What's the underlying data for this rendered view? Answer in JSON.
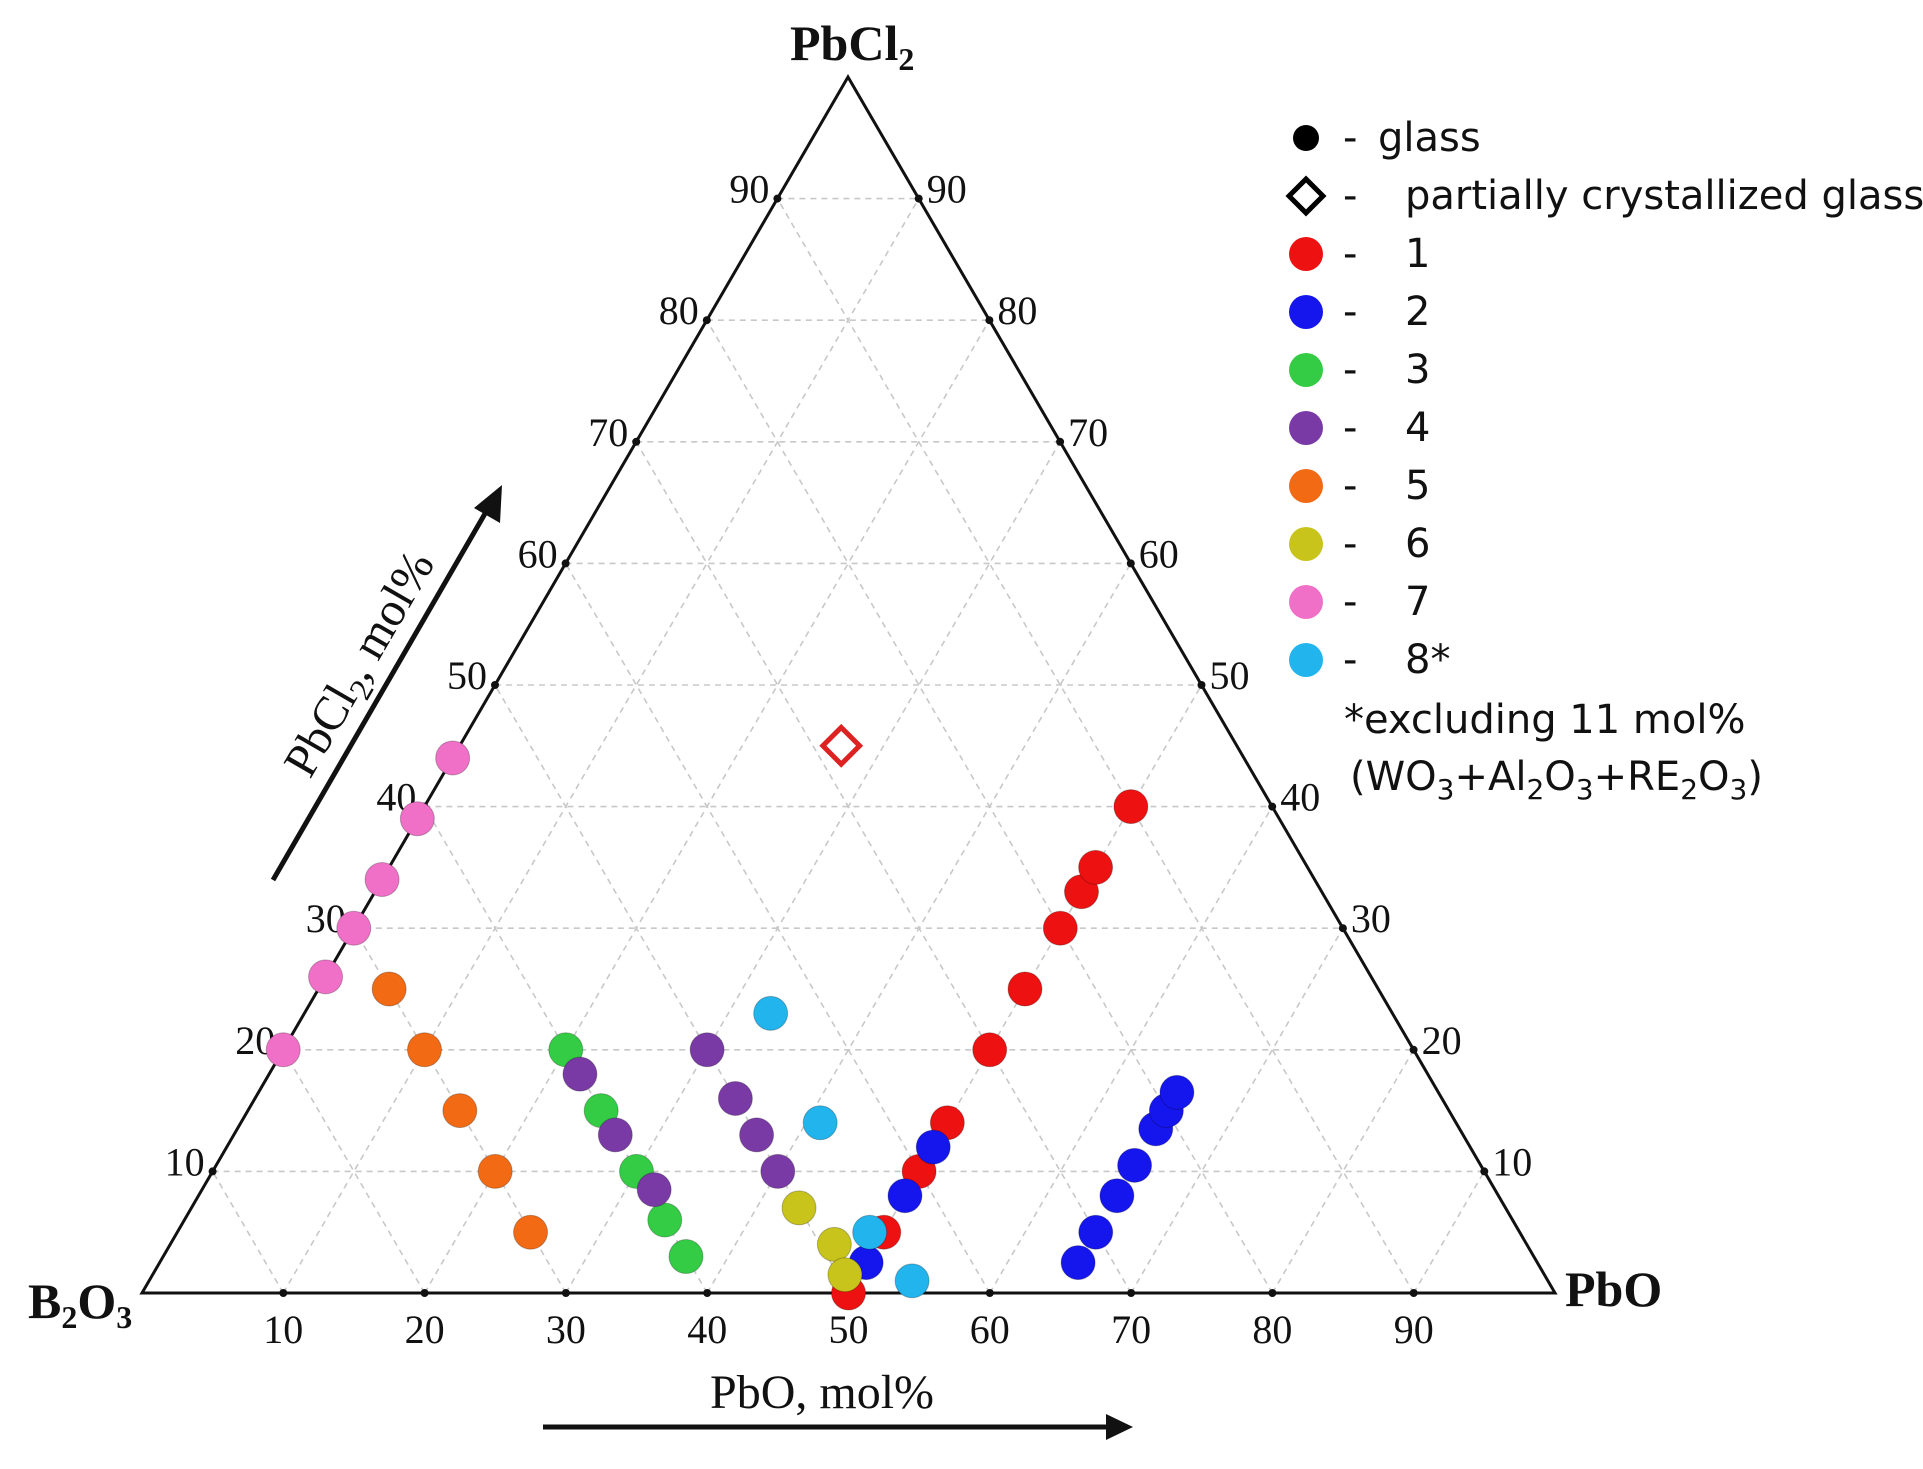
{
  "chart_data": {
    "type": "scatter",
    "plot_kind": "ternary",
    "vertices": {
      "top": {
        "main": "PbCl",
        "sub": "2",
        "tail": ""
      },
      "left": {
        "main": "B",
        "sub": "2",
        "mid": "O",
        "sub2": "3"
      },
      "right": {
        "main": "PbO"
      }
    },
    "axis_titles": {
      "left": {
        "main": "PbCl",
        "sub": "2",
        "tail": ", mol%"
      },
      "bottom": {
        "main": "PbO, mol%"
      }
    },
    "ticks": [
      "10",
      "20",
      "30",
      "40",
      "50",
      "60",
      "70",
      "80",
      "90"
    ],
    "tick_values": [
      10,
      20,
      30,
      40,
      50,
      60,
      70,
      80,
      90
    ],
    "grid": true,
    "legend": {
      "placement": "top-right",
      "items": [
        {
          "key": "glass",
          "dash": "-",
          "label": "glass",
          "marker": "dot",
          "color": "#000000"
        },
        {
          "key": "partial",
          "dash": "-",
          "label": "partially crystallized glass",
          "marker": "diamond",
          "color": "#000000"
        },
        {
          "key": "s1",
          "dash": "-",
          "label": "1",
          "marker": "dot",
          "color": "#ee1111"
        },
        {
          "key": "s2",
          "dash": "-",
          "label": "2",
          "marker": "dot",
          "color": "#1515ee"
        },
        {
          "key": "s3",
          "dash": "-",
          "label": "3",
          "marker": "dot",
          "color": "#33cc44"
        },
        {
          "key": "s4",
          "dash": "-",
          "label": "4",
          "marker": "dot",
          "color": "#7a3aa6"
        },
        {
          "key": "s5",
          "dash": "-",
          "label": "5",
          "marker": "dot",
          "color": "#f26a14"
        },
        {
          "key": "s6",
          "dash": "-",
          "label": "6",
          "marker": "dot",
          "color": "#c8c41c"
        },
        {
          "key": "s7",
          "dash": "-",
          "label": "7",
          "marker": "dot",
          "color": "#f070c8"
        },
        {
          "key": "s8",
          "dash": "-",
          "label": "8*",
          "marker": "dot",
          "color": "#22b4ec"
        }
      ],
      "footnote_line1": "*excluding 11 mol%",
      "footnote_line2": {
        "p1": "(WO",
        "s1": "3",
        "p2": "+Al",
        "s2": "2",
        "p3": "O",
        "s3": "3",
        "p4": "+RE",
        "s4": "2",
        "p5": "O",
        "s5": "3",
        "p6": ")"
      }
    },
    "series": [
      {
        "name": "1",
        "color": "#ee1111",
        "points": [
          {
            "PbO": 50,
            "PbCl2": 0
          },
          {
            "PbO": 50,
            "PbCl2": 5
          },
          {
            "PbO": 50,
            "PbCl2": 10
          },
          {
            "PbO": 50,
            "PbCl2": 14
          },
          {
            "PbO": 50,
            "PbCl2": 20
          },
          {
            "PbO": 50,
            "PbCl2": 25
          },
          {
            "PbO": 50,
            "PbCl2": 30
          },
          {
            "PbO": 50,
            "PbCl2": 33
          },
          {
            "PbO": 50,
            "PbCl2": 35
          },
          {
            "PbO": 50,
            "PbCl2": 40
          }
        ]
      },
      {
        "name": "2",
        "color": "#1515ee",
        "points": [
          {
            "PbO": 50,
            "PbCl2": 2.5
          },
          {
            "PbO": 50,
            "PbCl2": 8
          },
          {
            "PbO": 50,
            "PbCl2": 12
          },
          {
            "PbO": 65,
            "PbCl2": 2.5
          },
          {
            "PbO": 65,
            "PbCl2": 5
          },
          {
            "PbO": 65,
            "PbCl2": 8
          },
          {
            "PbO": 65,
            "PbCl2": 10.5
          },
          {
            "PbO": 65,
            "PbCl2": 13.5
          },
          {
            "PbO": 65,
            "PbCl2": 15
          },
          {
            "PbO": 65,
            "PbCl2": 16.5
          }
        ]
      },
      {
        "name": "3",
        "color": "#33cc44",
        "points": [
          {
            "PbO": 20,
            "PbCl2": 20
          },
          {
            "PbO": 25,
            "PbCl2": 15
          },
          {
            "PbO": 30,
            "PbCl2": 10
          },
          {
            "PbO": 34,
            "PbCl2": 6
          },
          {
            "PbO": 37,
            "PbCl2": 3
          }
        ]
      },
      {
        "name": "4",
        "color": "#7a3aa6",
        "points": [
          {
            "PbO": 22,
            "PbCl2": 18
          },
          {
            "PbO": 27,
            "PbCl2": 13
          },
          {
            "PbO": 32,
            "PbCl2": 8.5
          },
          {
            "PbO": 30,
            "PbCl2": 20
          },
          {
            "PbO": 34,
            "PbCl2": 16
          },
          {
            "PbO": 37,
            "PbCl2": 13
          },
          {
            "PbO": 40,
            "PbCl2": 10
          }
        ]
      },
      {
        "name": "5",
        "color": "#f26a14",
        "points": [
          {
            "PbO": 25,
            "PbCl2": 5
          },
          {
            "PbO": 20,
            "PbCl2": 10
          },
          {
            "PbO": 15,
            "PbCl2": 15
          },
          {
            "PbO": 10,
            "PbCl2": 20
          },
          {
            "PbO": 5,
            "PbCl2": 25
          }
        ]
      },
      {
        "name": "6",
        "color": "#c8c41c",
        "points": [
          {
            "PbO": 43,
            "PbCl2": 7
          },
          {
            "PbO": 47,
            "PbCl2": 4
          },
          {
            "PbO": 49,
            "PbCl2": 1.5
          }
        ]
      },
      {
        "name": "7",
        "color": "#f070c8",
        "points": [
          {
            "PbO": 0,
            "PbCl2": 20
          },
          {
            "PbO": 0,
            "PbCl2": 26
          },
          {
            "PbO": 0,
            "PbCl2": 30
          },
          {
            "PbO": 0,
            "PbCl2": 34
          },
          {
            "PbO": 0,
            "PbCl2": 39
          },
          {
            "PbO": 0,
            "PbCl2": 44
          }
        ]
      },
      {
        "name": "8*",
        "color": "#22b4ec",
        "points": [
          {
            "PbO": 33,
            "PbCl2": 23
          },
          {
            "PbO": 41,
            "PbCl2": 14
          },
          {
            "PbO": 49,
            "PbCl2": 5
          },
          {
            "PbO": 54,
            "PbCl2": 1
          }
        ]
      }
    ],
    "partially_crystallized": {
      "PbO": 27,
      "PbCl2": 45,
      "color": "#dd2222"
    }
  }
}
